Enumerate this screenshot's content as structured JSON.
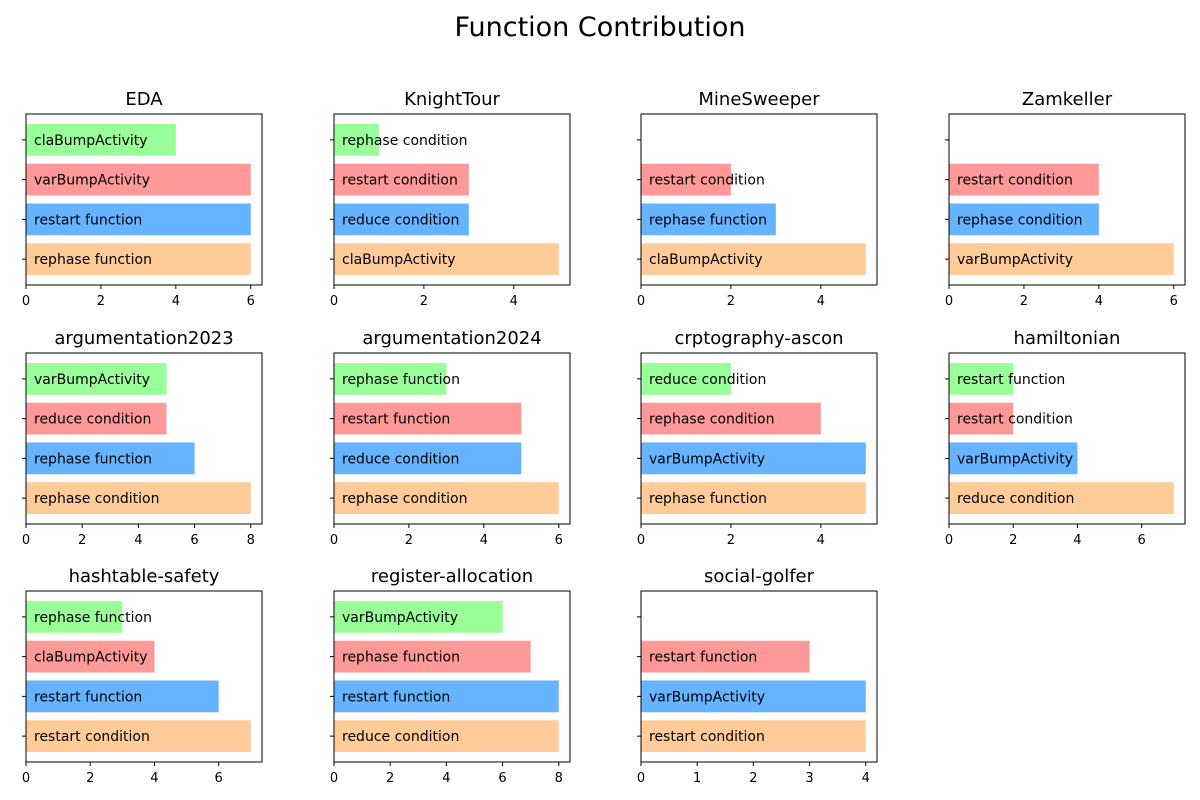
{
  "figure_title": "Function Contribution",
  "colors": {
    "series_bottom": "#ffcc99",
    "series_second": "#66b3ff",
    "series_third": "#ff9999",
    "series_top": "#99ff99",
    "axis": "#000000",
    "background": "#ffffff"
  },
  "chart_data": [
    {
      "type": "bar",
      "orientation": "horizontal",
      "title": "EDA",
      "categories": [
        "rephase function",
        "restart function",
        "varBumpActivity",
        "claBumpActivity"
      ],
      "values": [
        6,
        6,
        6,
        4
      ],
      "xlim": [
        0,
        6.3
      ],
      "xticks": [
        0,
        2,
        4,
        6
      ],
      "grid": false
    },
    {
      "type": "bar",
      "orientation": "horizontal",
      "title": "KnightTour",
      "categories": [
        "claBumpActivity",
        "reduce condition",
        "restart condition",
        "rephase condition"
      ],
      "values": [
        5,
        3,
        3,
        1
      ],
      "xlim": [
        0,
        5.25
      ],
      "xticks": [
        0,
        2,
        4
      ],
      "grid": false
    },
    {
      "type": "bar",
      "orientation": "horizontal",
      "title": "MineSweeper",
      "categories": [
        "claBumpActivity",
        "rephase function",
        "restart condition"
      ],
      "values": [
        5,
        3,
        2
      ],
      "xlim": [
        0,
        5.25
      ],
      "xticks": [
        0,
        2,
        4
      ],
      "grid": false
    },
    {
      "type": "bar",
      "orientation": "horizontal",
      "title": "Zamkeller",
      "categories": [
        "varBumpActivity",
        "rephase condition",
        "restart condition"
      ],
      "values": [
        6,
        4,
        4
      ],
      "xlim": [
        0,
        6.3
      ],
      "xticks": [
        0,
        2,
        4,
        6
      ],
      "grid": false
    },
    {
      "type": "bar",
      "orientation": "horizontal",
      "title": "argumentation2023",
      "categories": [
        "rephase condition",
        "rephase function",
        "reduce condition",
        "varBumpActivity"
      ],
      "values": [
        8,
        6,
        5,
        5
      ],
      "xlim": [
        0,
        8.4
      ],
      "xticks": [
        0,
        2,
        4,
        6,
        8
      ],
      "grid": false
    },
    {
      "type": "bar",
      "orientation": "horizontal",
      "title": "argumentation2024",
      "categories": [
        "rephase condition",
        "reduce condition",
        "restart function",
        "rephase function"
      ],
      "values": [
        6,
        5,
        5,
        3
      ],
      "xlim": [
        0,
        6.3
      ],
      "xticks": [
        0,
        2,
        4,
        6
      ],
      "grid": false
    },
    {
      "type": "bar",
      "orientation": "horizontal",
      "title": "crptography-ascon",
      "categories": [
        "rephase function",
        "varBumpActivity",
        "rephase condition",
        "reduce condition"
      ],
      "values": [
        5,
        5,
        4,
        2
      ],
      "xlim": [
        0,
        5.25
      ],
      "xticks": [
        0,
        2,
        4
      ],
      "grid": false
    },
    {
      "type": "bar",
      "orientation": "horizontal",
      "title": "hamiltonian",
      "categories": [
        "reduce condition",
        "varBumpActivity",
        "restart condition",
        "restart function"
      ],
      "values": [
        7,
        4,
        2,
        2
      ],
      "xlim": [
        0,
        7.35
      ],
      "xticks": [
        0,
        2,
        4,
        6
      ],
      "grid": false
    },
    {
      "type": "bar",
      "orientation": "horizontal",
      "title": "hashtable-safety",
      "categories": [
        "restart condition",
        "restart function",
        "claBumpActivity",
        "rephase function"
      ],
      "values": [
        7,
        6,
        4,
        3
      ],
      "xlim": [
        0,
        7.35
      ],
      "xticks": [
        0,
        2,
        4,
        6
      ],
      "grid": false
    },
    {
      "type": "bar",
      "orientation": "horizontal",
      "title": "register-allocation",
      "categories": [
        "reduce condition",
        "restart function",
        "rephase function",
        "varBumpActivity"
      ],
      "values": [
        8,
        8,
        7,
        6
      ],
      "xlim": [
        0,
        8.4
      ],
      "xticks": [
        0,
        2,
        4,
        6,
        8
      ],
      "grid": false
    },
    {
      "type": "bar",
      "orientation": "horizontal",
      "title": "social-golfer",
      "categories": [
        "restart condition",
        "varBumpActivity",
        "restart function"
      ],
      "values": [
        4,
        4,
        3
      ],
      "xlim": [
        0,
        4.2
      ],
      "xticks": [
        0,
        1,
        2,
        3,
        4
      ],
      "grid": false
    }
  ]
}
